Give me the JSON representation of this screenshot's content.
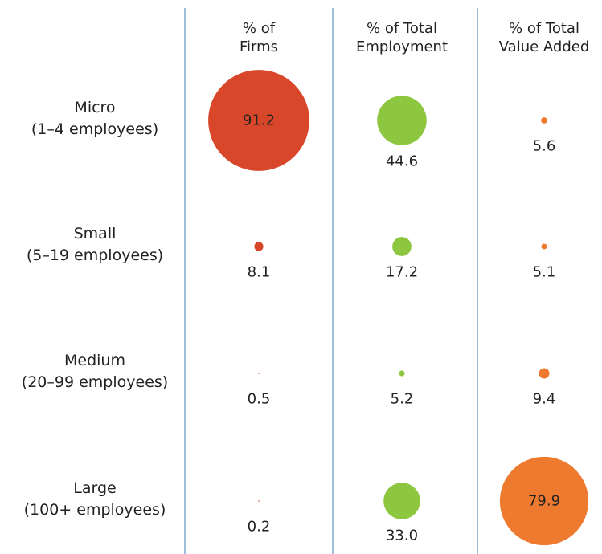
{
  "chart_data": {
    "type": "bubblegrid",
    "categories": [
      "Micro",
      "Small",
      "Medium",
      "Large"
    ],
    "category_details": [
      "(1–4 employees)",
      "(5–19 employees)",
      "(20–99 employees)",
      "(100+ employees)"
    ],
    "series": [
      {
        "name": "% of Firms",
        "color": "#d9472b",
        "values": [
          91.2,
          8.1,
          0.5,
          0.2
        ],
        "value_labels": [
          "91.2",
          "8.1",
          "0.5",
          "0.2"
        ]
      },
      {
        "name": "% of Total Employment",
        "color": "#8dc63f",
        "values": [
          44.6,
          17.2,
          5.2,
          33.0
        ],
        "value_labels": [
          "44.6",
          "17.2",
          "5.2",
          "33.0"
        ]
      },
      {
        "name": "% of Total Value Added",
        "color": "#ee7a30",
        "values": [
          5.6,
          5.1,
          9.4,
          79.9
        ],
        "value_labels": [
          "5.6",
          "5.1",
          "9.4",
          "79.9"
        ]
      }
    ]
  }
}
